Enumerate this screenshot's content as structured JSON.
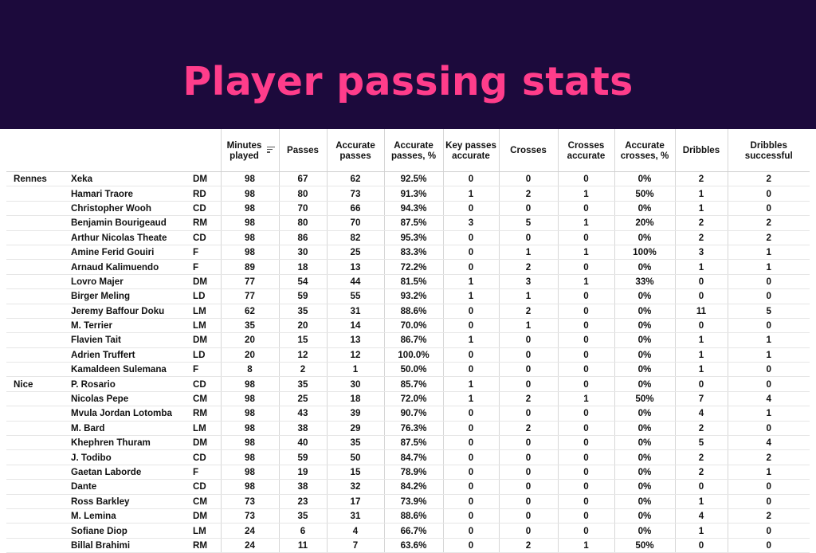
{
  "title": "Player passing stats",
  "chart_data": {
    "type": "table",
    "columns": [
      "",
      "",
      "",
      "Minutes played",
      "Passes",
      "Accurate passes",
      "Accurate passes, %",
      "Key passes accurate",
      "Crosses",
      "Crosses accurate",
      "Accurate crosses, %",
      "Dribbles",
      "Dribbles successful"
    ],
    "rows": [
      [
        "Rennes",
        "Xeka",
        "DM",
        "98",
        "67",
        "62",
        "92.5%",
        "0",
        "0",
        "0",
        "0%",
        "2",
        "2"
      ],
      [
        "",
        "Hamari Traore",
        "RD",
        "98",
        "80",
        "73",
        "91.3%",
        "1",
        "2",
        "1",
        "50%",
        "1",
        "0"
      ],
      [
        "",
        "Christopher Wooh",
        "CD",
        "98",
        "70",
        "66",
        "94.3%",
        "0",
        "0",
        "0",
        "0%",
        "1",
        "0"
      ],
      [
        "",
        "Benjamin Bourigeaud",
        "RM",
        "98",
        "80",
        "70",
        "87.5%",
        "3",
        "5",
        "1",
        "20%",
        "2",
        "2"
      ],
      [
        "",
        "Arthur Nicolas Theate",
        "CD",
        "98",
        "86",
        "82",
        "95.3%",
        "0",
        "0",
        "0",
        "0%",
        "2",
        "2"
      ],
      [
        "",
        "Amine Ferid Gouiri",
        "F",
        "98",
        "30",
        "25",
        "83.3%",
        "0",
        "1",
        "1",
        "100%",
        "3",
        "1"
      ],
      [
        "",
        "Arnaud Kalimuendo",
        "F",
        "89",
        "18",
        "13",
        "72.2%",
        "0",
        "2",
        "0",
        "0%",
        "1",
        "1"
      ],
      [
        "",
        "Lovro Majer",
        "DM",
        "77",
        "54",
        "44",
        "81.5%",
        "1",
        "3",
        "1",
        "33%",
        "0",
        "0"
      ],
      [
        "",
        "Birger Meling",
        "LD",
        "77",
        "59",
        "55",
        "93.2%",
        "1",
        "1",
        "0",
        "0%",
        "0",
        "0"
      ],
      [
        "",
        "Jeremy Baffour Doku",
        "LM",
        "62",
        "35",
        "31",
        "88.6%",
        "0",
        "2",
        "0",
        "0%",
        "11",
        "5"
      ],
      [
        "",
        "M. Terrier",
        "LM",
        "35",
        "20",
        "14",
        "70.0%",
        "0",
        "1",
        "0",
        "0%",
        "0",
        "0"
      ],
      [
        "",
        "Flavien Tait",
        "DM",
        "20",
        "15",
        "13",
        "86.7%",
        "1",
        "0",
        "0",
        "0%",
        "1",
        "1"
      ],
      [
        "",
        "Adrien Truffert",
        "LD",
        "20",
        "12",
        "12",
        "100.0%",
        "0",
        "0",
        "0",
        "0%",
        "1",
        "1"
      ],
      [
        "",
        "Kamaldeen Sulemana",
        "F",
        "8",
        "2",
        "1",
        "50.0%",
        "0",
        "0",
        "0",
        "0%",
        "1",
        "0"
      ],
      [
        "Nice",
        "P. Rosario",
        "CD",
        "98",
        "35",
        "30",
        "85.7%",
        "1",
        "0",
        "0",
        "0%",
        "0",
        "0"
      ],
      [
        "",
        "Nicolas Pepe",
        "CM",
        "98",
        "25",
        "18",
        "72.0%",
        "1",
        "2",
        "1",
        "50%",
        "7",
        "4"
      ],
      [
        "",
        "Mvula Jordan Lotomba",
        "RM",
        "98",
        "43",
        "39",
        "90.7%",
        "0",
        "0",
        "0",
        "0%",
        "4",
        "1"
      ],
      [
        "",
        "M. Bard",
        "LM",
        "98",
        "38",
        "29",
        "76.3%",
        "0",
        "2",
        "0",
        "0%",
        "2",
        "0"
      ],
      [
        "",
        "Khephren Thuram",
        "DM",
        "98",
        "40",
        "35",
        "87.5%",
        "0",
        "0",
        "0",
        "0%",
        "5",
        "4"
      ],
      [
        "",
        "J. Todibo",
        "CD",
        "98",
        "59",
        "50",
        "84.7%",
        "0",
        "0",
        "0",
        "0%",
        "2",
        "2"
      ],
      [
        "",
        "Gaetan Laborde",
        "F",
        "98",
        "19",
        "15",
        "78.9%",
        "0",
        "0",
        "0",
        "0%",
        "2",
        "1"
      ],
      [
        "",
        "Dante",
        "CD",
        "98",
        "38",
        "32",
        "84.2%",
        "0",
        "0",
        "0",
        "0%",
        "0",
        "0"
      ],
      [
        "",
        "Ross Barkley",
        "CM",
        "73",
        "23",
        "17",
        "73.9%",
        "0",
        "0",
        "0",
        "0%",
        "1",
        "0"
      ],
      [
        "",
        "M. Lemina",
        "DM",
        "73",
        "35",
        "31",
        "88.6%",
        "0",
        "0",
        "0",
        "0%",
        "4",
        "2"
      ],
      [
        "",
        "Sofiane Diop",
        "LM",
        "24",
        "6",
        "4",
        "66.7%",
        "0",
        "0",
        "0",
        "0%",
        "1",
        "0"
      ],
      [
        "",
        "Billal Brahimi",
        "RM",
        "24",
        "11",
        "7",
        "63.6%",
        "0",
        "2",
        "1",
        "50%",
        "0",
        "0"
      ]
    ],
    "sorted_by": "Minutes played"
  },
  "colors": {
    "header_bg": "#1c0a3c",
    "title": "#ff3d8b",
    "text": "#111111"
  },
  "icons": {
    "sort": "sort-descending-icon"
  }
}
